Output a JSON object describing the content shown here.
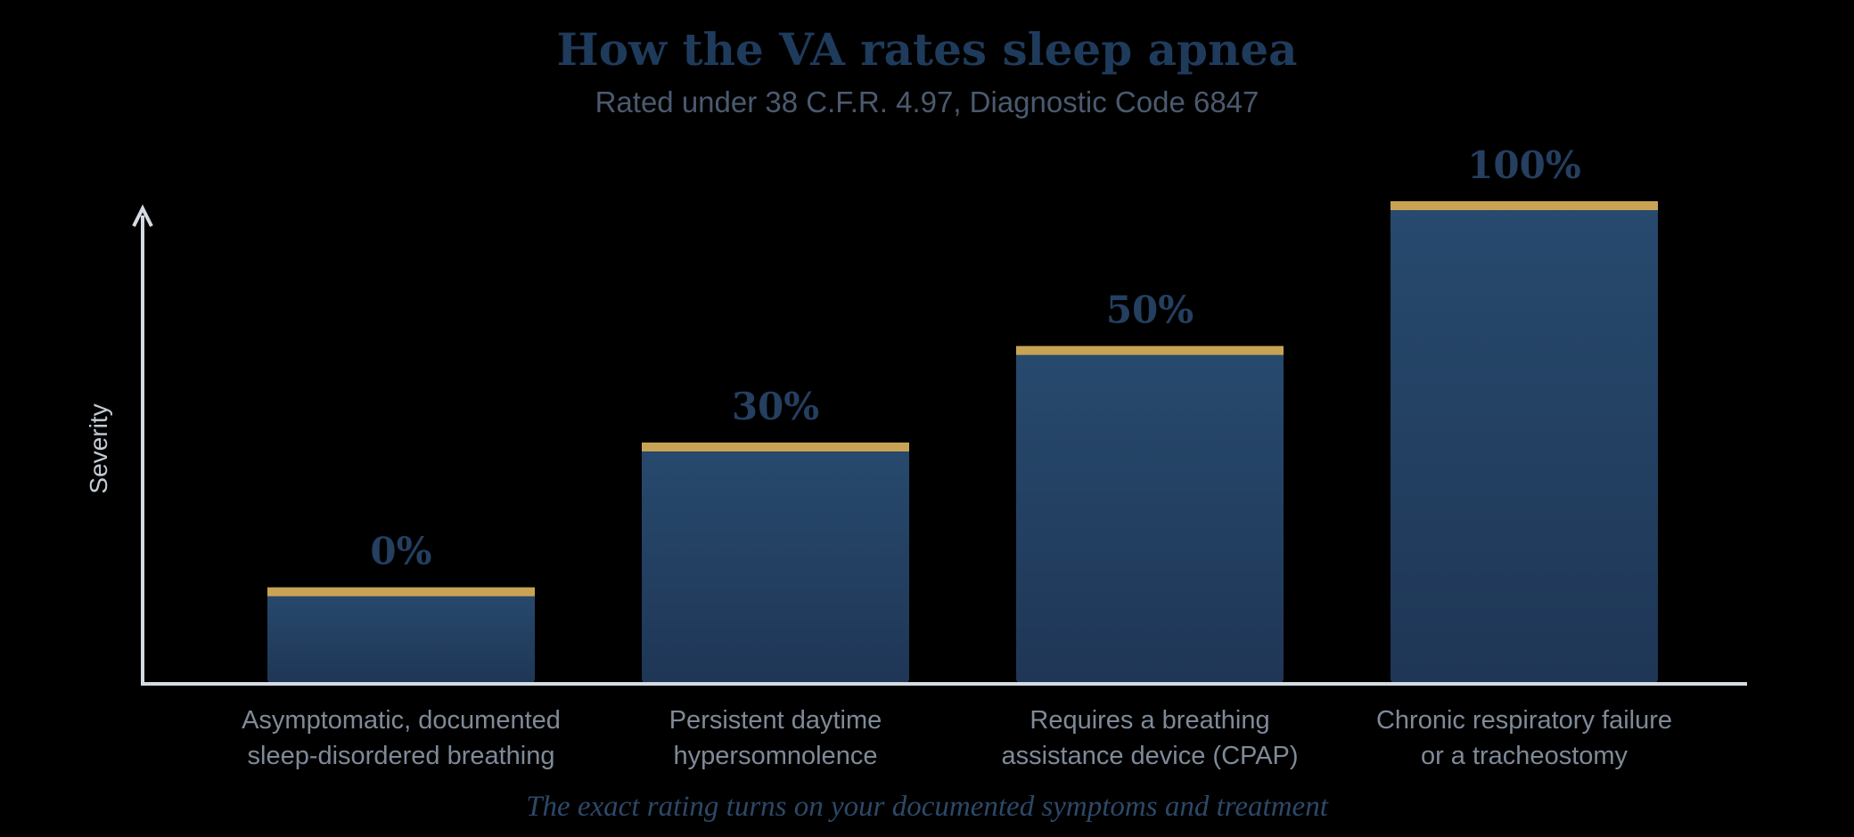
{
  "colors": {
    "background": "#000000",
    "title": "#1f3b5c",
    "subtitle": "#4b5a6e",
    "bar_top": "#274a6e",
    "bar_bottom": "#1f3656",
    "accent_cap": "#c9a354",
    "axis": "#d5dbe3",
    "category_text": "#7f8a98",
    "value_text": "#243f60",
    "ylabel_text": "#c4cbd4",
    "footnote": "#2d4868"
  },
  "chart_data": {
    "type": "bar",
    "title": "How the VA rates sleep apnea",
    "subtitle": "Rated under 38 C.F.R. 4.97, Diagnostic Code 6847",
    "xlabel": "",
    "ylabel": "Severity",
    "grid": false,
    "legend": "none",
    "categories": [
      [
        "Asymptomatic, documented",
        "sleep-disordered breathing"
      ],
      [
        "Persistent daytime",
        "hypersomnolence"
      ],
      [
        "Requires a breathing",
        "assistance device (CPAP)"
      ],
      [
        "Chronic respiratory failure",
        "or a tracheostomy"
      ]
    ],
    "series": [
      {
        "values": [
          0,
          30,
          50,
          100
        ],
        "display_labels": [
          "0%",
          "30%",
          "50%",
          "100%"
        ],
        "severity_level": [
          0.2,
          0.5,
          0.7,
          1.0
        ]
      }
    ],
    "footnote": "The exact rating turns on your documented symptoms and treatment"
  }
}
